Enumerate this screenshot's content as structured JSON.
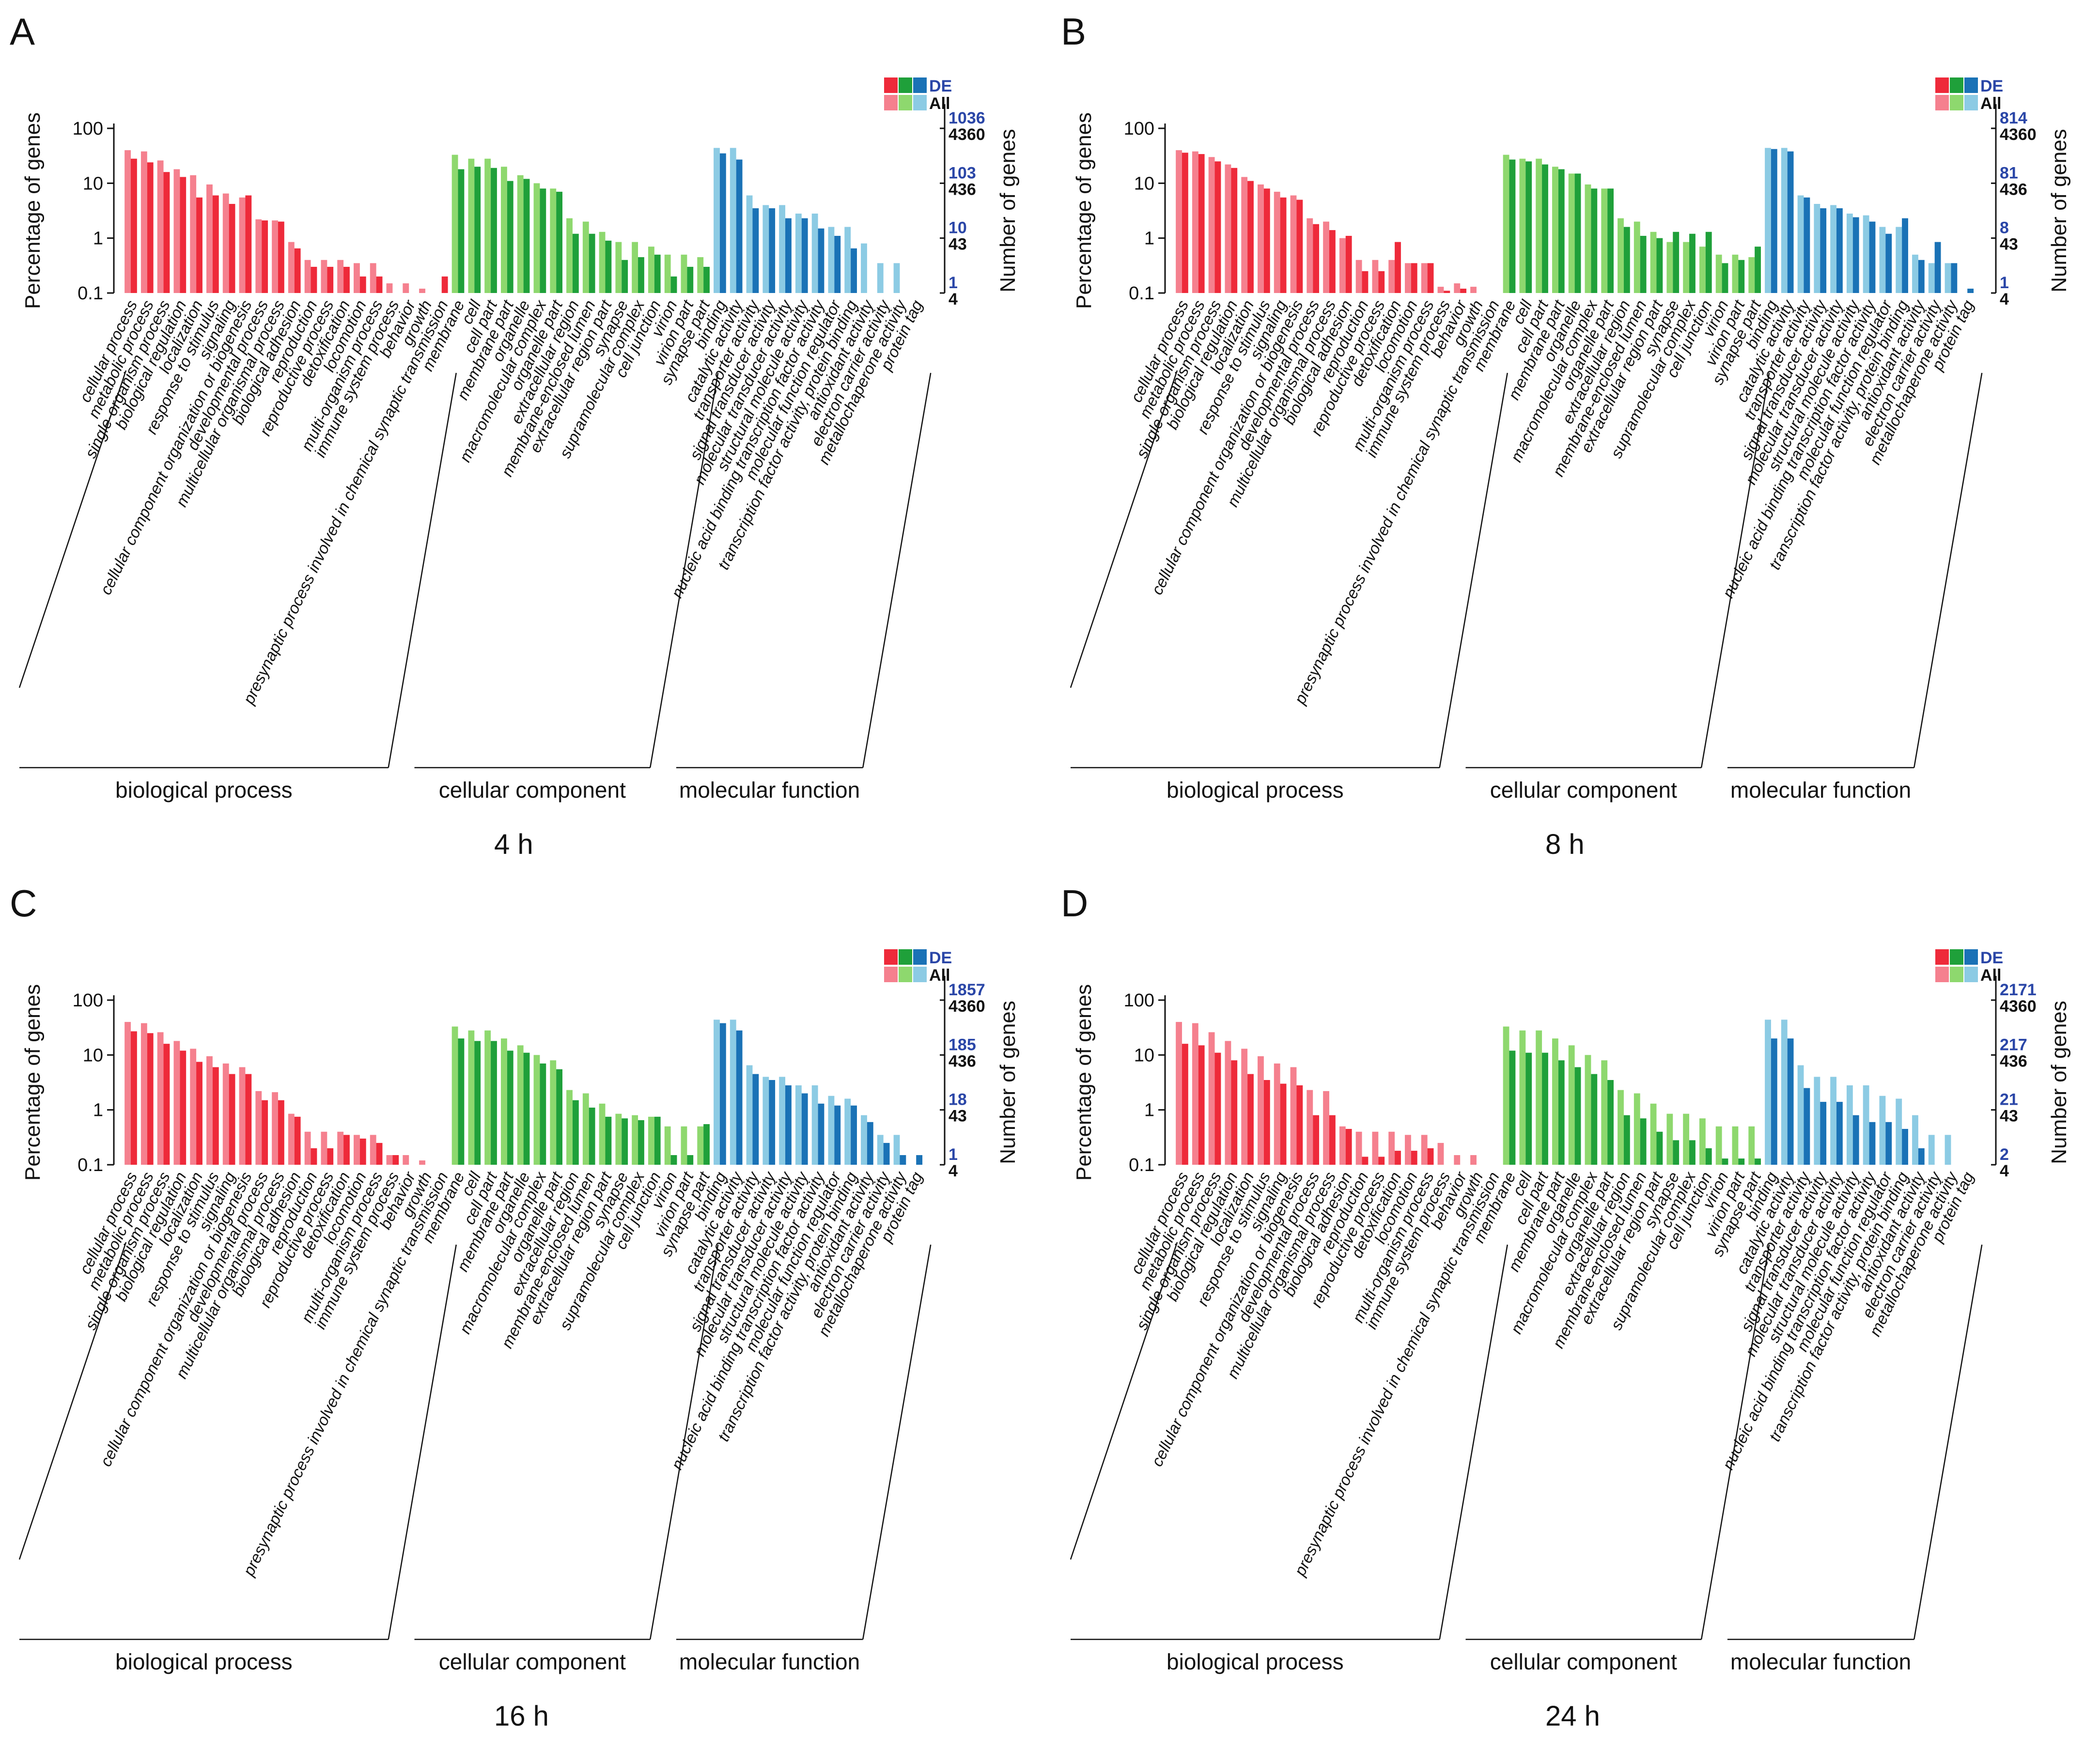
{
  "colors": {
    "bp_de": "#ee2a3a",
    "bp_all": "#f5808e",
    "cc_de": "#1fa03a",
    "cc_all": "#8ed86e",
    "mf_de": "#1a72b6",
    "mf_all": "#8ccbe4",
    "right_de_label": "#2a46a7"
  },
  "legend": {
    "de": "DE",
    "all": "All"
  },
  "axes": {
    "left_title": "Percentage of genes",
    "right_title": "Number of genes",
    "y_ticks": [
      "100",
      "10",
      "1",
      "0.1"
    ]
  },
  "groups": [
    "biological process",
    "cellular component",
    "molecular function"
  ],
  "chart_data": [
    {
      "panel": "A",
      "timepoint": "4 h",
      "type": "bar",
      "yscale": "log",
      "ylim": [
        0.1,
        100
      ],
      "right_axis": {
        "de": [
          "1036",
          "103",
          "10",
          "1"
        ],
        "all": [
          "4360",
          "436",
          "43",
          "4"
        ]
      },
      "categories": [
        "cellular process",
        "metabolic process",
        "single-organism process",
        "biological regulation",
        "localization",
        "response to stimulus",
        "signaling",
        "cellular component organization or biogenesis",
        "developmental process",
        "multicellular organismal process",
        "biological adhesion",
        "reproduction",
        "reproductive process",
        "detoxification",
        "locomotion",
        "multi-organism process",
        "immune system process",
        "behavior",
        "growth",
        "presynaptic process involved in chemical synaptic transmission",
        "membrane",
        "cell",
        "cell part",
        "membrane part",
        "organelle",
        "macromolecular complex",
        "organelle part",
        "extracellular region",
        "membrane-enclosed lumen",
        "extracellular region part",
        "synapse",
        "supramolecular complex",
        "cell junction",
        "virion",
        "virion part",
        "synapse part",
        "binding",
        "catalytic activity",
        "transporter activity",
        "signal transducer activity",
        "molecular transducer activity",
        "structural molecule activity",
        "nucleic acid binding transcription factor activity",
        "molecular function regulator",
        "transcription factor activity, protein binding",
        "antioxidant activity",
        "electron carrier activity",
        "metallochaperone activity",
        "protein tag"
      ],
      "groups": [
        "BP",
        "BP",
        "BP",
        "BP",
        "BP",
        "BP",
        "BP",
        "BP",
        "BP",
        "BP",
        "BP",
        "BP",
        "BP",
        "BP",
        "BP",
        "BP",
        "BP",
        "BP",
        "BP",
        "BP",
        "CC",
        "CC",
        "CC",
        "CC",
        "CC",
        "CC",
        "CC",
        "CC",
        "CC",
        "CC",
        "CC",
        "CC",
        "CC",
        "CC",
        "CC",
        "CC",
        "MF",
        "MF",
        "MF",
        "MF",
        "MF",
        "MF",
        "MF",
        "MF",
        "MF",
        "MF",
        "MF",
        "MF",
        "MF"
      ],
      "series": [
        {
          "name": "All",
          "values": [
            40,
            38,
            26,
            18,
            14,
            9.5,
            6.5,
            5.5,
            2.2,
            2.1,
            0.85,
            0.4,
            0.4,
            0.4,
            0.35,
            0.35,
            0.15,
            0.15,
            0.12,
            0.1,
            33,
            28,
            28,
            20,
            14,
            10,
            8,
            2.3,
            2,
            1.3,
            0.85,
            0.85,
            0.7,
            0.5,
            0.5,
            0.45,
            44,
            44,
            6,
            4,
            4,
            2.8,
            2.8,
            1.6,
            1.6,
            0.8,
            0.35,
            0.35,
            0.1
          ]
        },
        {
          "name": "DE",
          "values": [
            28,
            24,
            16,
            13,
            5.5,
            6,
            4.2,
            6,
            2.1,
            2,
            0.65,
            0.3,
            0.3,
            0.3,
            0.2,
            0.2,
            0.1,
            0.1,
            0.1,
            0.2,
            18,
            20,
            19,
            11,
            12,
            8,
            7,
            1.2,
            1.2,
            0.9,
            0.4,
            0.45,
            0.5,
            0.2,
            0.3,
            0.3,
            35,
            27,
            3.5,
            3.5,
            2.3,
            2.3,
            1.5,
            1.1,
            0.65,
            0.1,
            0.1,
            0.1,
            0.1
          ]
        }
      ]
    },
    {
      "panel": "B",
      "timepoint": "8 h",
      "type": "bar",
      "yscale": "log",
      "ylim": [
        0.1,
        100
      ],
      "right_axis": {
        "de": [
          "814",
          "81",
          "8",
          "1"
        ],
        "all": [
          "4360",
          "436",
          "43",
          "4"
        ]
      },
      "categories": [
        "cellular process",
        "metabolic process",
        "single-organism process",
        "biological regulation",
        "localization",
        "response to stimulus",
        "signaling",
        "cellular component organization or biogenesis",
        "developmental process",
        "multicellular organismal process",
        "biological adhesion",
        "reproduction",
        "reproductive process",
        "detoxification",
        "locomotion",
        "multi-organism process",
        "immune system process",
        "behavior",
        "growth",
        "presynaptic process involved in chemical synaptic transmission",
        "membrane",
        "cell",
        "cell part",
        "membrane part",
        "organelle",
        "macromolecular complex",
        "organelle part",
        "extracellular region",
        "membrane-enclosed lumen",
        "extracellular region part",
        "synapse",
        "supramolecular complex",
        "cell junction",
        "virion",
        "virion part",
        "synapse part",
        "binding",
        "catalytic activity",
        "transporter activity",
        "signal transducer activity",
        "molecular transducer activity",
        "structural molecule activity",
        "nucleic acid binding transcription factor activity",
        "molecular function regulator",
        "transcription factor activity, protein binding",
        "antioxidant activity",
        "electron carrier activity",
        "metallochaperone activity",
        "protein tag"
      ],
      "groups": [
        "BP",
        "BP",
        "BP",
        "BP",
        "BP",
        "BP",
        "BP",
        "BP",
        "BP",
        "BP",
        "BP",
        "BP",
        "BP",
        "BP",
        "BP",
        "BP",
        "BP",
        "BP",
        "BP",
        "BP",
        "CC",
        "CC",
        "CC",
        "CC",
        "CC",
        "CC",
        "CC",
        "CC",
        "CC",
        "CC",
        "CC",
        "CC",
        "CC",
        "CC",
        "CC",
        "CC",
        "MF",
        "MF",
        "MF",
        "MF",
        "MF",
        "MF",
        "MF",
        "MF",
        "MF",
        "MF",
        "MF",
        "MF",
        "MF"
      ],
      "series": [
        {
          "name": "All",
          "values": [
            40,
            38,
            30,
            22,
            13,
            9.5,
            7,
            6,
            2.3,
            2,
            1,
            0.4,
            0.4,
            0.4,
            0.35,
            0.35,
            0.13,
            0.15,
            0.13,
            0.1,
            33,
            28,
            28,
            20,
            15,
            9.5,
            8,
            2.3,
            2,
            1.3,
            0.85,
            0.85,
            0.7,
            0.5,
            0.5,
            0.45,
            44,
            44,
            6,
            4.2,
            4,
            2.8,
            2.6,
            1.6,
            1.6,
            0.5,
            0.35,
            0.35,
            0.1
          ]
        },
        {
          "name": "DE",
          "values": [
            36,
            34,
            25,
            19,
            11,
            8,
            5.5,
            5,
            1.8,
            1.4,
            1.1,
            0.25,
            0.25,
            0.85,
            0.35,
            0.35,
            0.11,
            0.12,
            0.1,
            0.1,
            27,
            25,
            22,
            18,
            15,
            8,
            8,
            1.6,
            1.1,
            1,
            1.3,
            1.2,
            1.3,
            0.35,
            0.4,
            0.7,
            42,
            38,
            5.5,
            3.5,
            3.5,
            2.4,
            2,
            1.2,
            2.3,
            0.4,
            0.85,
            0.35,
            0.12
          ]
        }
      ]
    },
    {
      "panel": "C",
      "timepoint": "16 h",
      "type": "bar",
      "yscale": "log",
      "ylim": [
        0.1,
        100
      ],
      "right_axis": {
        "de": [
          "1857",
          "185",
          "18",
          "1"
        ],
        "all": [
          "4360",
          "436",
          "43",
          "4"
        ]
      },
      "categories": [
        "cellular process",
        "metabolic process",
        "single-organism process",
        "biological regulation",
        "localization",
        "response to stimulus",
        "signaling",
        "cellular component organization or biogenesis",
        "developmental process",
        "multicellular organismal process",
        "biological adhesion",
        "reproduction",
        "reproductive process",
        "detoxification",
        "locomotion",
        "multi-organism process",
        "immune system process",
        "behavior",
        "growth",
        "presynaptic process involved in chemical synaptic transmission",
        "membrane",
        "cell",
        "cell part",
        "membrane part",
        "organelle",
        "macromolecular complex",
        "organelle part",
        "extracellular region",
        "membrane-enclosed lumen",
        "extracellular region part",
        "synapse",
        "supramolecular complex",
        "cell junction",
        "virion",
        "virion part",
        "synapse part",
        "binding",
        "catalytic activity",
        "transporter activity",
        "signal transducer activity",
        "molecular transducer activity",
        "structural molecule activity",
        "nucleic acid binding transcription factor activity",
        "molecular function regulator",
        "transcription factor activity, protein binding",
        "antioxidant activity",
        "electron carrier activity",
        "metallochaperone activity",
        "protein tag"
      ],
      "groups": [
        "BP",
        "BP",
        "BP",
        "BP",
        "BP",
        "BP",
        "BP",
        "BP",
        "BP",
        "BP",
        "BP",
        "BP",
        "BP",
        "BP",
        "BP",
        "BP",
        "BP",
        "BP",
        "BP",
        "BP",
        "CC",
        "CC",
        "CC",
        "CC",
        "CC",
        "CC",
        "CC",
        "CC",
        "CC",
        "CC",
        "CC",
        "CC",
        "CC",
        "CC",
        "CC",
        "CC",
        "MF",
        "MF",
        "MF",
        "MF",
        "MF",
        "MF",
        "MF",
        "MF",
        "MF",
        "MF",
        "MF",
        "MF",
        "MF"
      ],
      "series": [
        {
          "name": "All",
          "values": [
            40,
            38,
            26,
            18,
            13,
            9.5,
            7,
            6,
            2.2,
            2.1,
            0.85,
            0.4,
            0.4,
            0.4,
            0.35,
            0.35,
            0.15,
            0.15,
            0.12,
            0.1,
            33,
            28,
            28,
            20,
            15,
            10,
            8,
            2.3,
            2,
            1.3,
            0.85,
            0.8,
            0.75,
            0.5,
            0.5,
            0.5,
            44,
            44,
            6.5,
            4,
            4,
            2.8,
            2.8,
            1.8,
            1.6,
            0.8,
            0.35,
            0.35,
            0.1
          ]
        },
        {
          "name": "DE",
          "values": [
            27,
            25,
            16,
            12,
            7.5,
            6,
            4.5,
            4.5,
            1.5,
            1.5,
            0.75,
            0.2,
            0.2,
            0.35,
            0.3,
            0.25,
            0.15,
            0.1,
            0.1,
            0.1,
            20,
            18,
            18,
            12,
            11,
            7,
            5.5,
            1.5,
            1.1,
            0.75,
            0.7,
            0.65,
            0.75,
            0.15,
            0.15,
            0.55,
            38,
            28,
            4.5,
            3.5,
            2.8,
            2,
            1.3,
            1.2,
            1.2,
            0.6,
            0.25,
            0.15,
            0.15
          ]
        }
      ]
    },
    {
      "panel": "D",
      "timepoint": "24 h",
      "type": "bar",
      "yscale": "log",
      "ylim": [
        0.1,
        100
      ],
      "right_axis": {
        "de": [
          "2171",
          "217",
          "21",
          "2"
        ],
        "all": [
          "4360",
          "436",
          "43",
          "4"
        ]
      },
      "categories": [
        "cellular process",
        "metabolic process",
        "single-organism process",
        "biological regulation",
        "localization",
        "response to stimulus",
        "signaling",
        "cellular component organization or biogenesis",
        "developmental process",
        "multicellular organismal process",
        "biological adhesion",
        "reproduction",
        "reproductive process",
        "detoxification",
        "locomotion",
        "multi-organism process",
        "immune system process",
        "behavior",
        "growth",
        "presynaptic process involved in chemical synaptic transmission",
        "membrane",
        "cell",
        "cell part",
        "membrane part",
        "organelle",
        "macromolecular complex",
        "organelle part",
        "extracellular region",
        "membrane-enclosed lumen",
        "extracellular region part",
        "synapse",
        "supramolecular complex",
        "cell junction",
        "virion",
        "virion part",
        "synapse part",
        "binding",
        "catalytic activity",
        "transporter activity",
        "signal transducer activity",
        "molecular transducer activity",
        "structural molecule activity",
        "nucleic acid binding transcription factor activity",
        "molecular function regulator",
        "transcription factor activity, protein binding",
        "antioxidant activity",
        "electron carrier activity",
        "metallochaperone activity",
        "protein tag"
      ],
      "groups": [
        "BP",
        "BP",
        "BP",
        "BP",
        "BP",
        "BP",
        "BP",
        "BP",
        "BP",
        "BP",
        "BP",
        "BP",
        "BP",
        "BP",
        "BP",
        "BP",
        "BP",
        "BP",
        "BP",
        "BP",
        "CC",
        "CC",
        "CC",
        "CC",
        "CC",
        "CC",
        "CC",
        "CC",
        "CC",
        "CC",
        "CC",
        "CC",
        "CC",
        "CC",
        "CC",
        "CC",
        "MF",
        "MF",
        "MF",
        "MF",
        "MF",
        "MF",
        "MF",
        "MF",
        "MF",
        "MF",
        "MF",
        "MF",
        "MF"
      ],
      "series": [
        {
          "name": "All",
          "values": [
            40,
            38,
            26,
            18,
            13,
            9.5,
            7,
            6,
            2.3,
            2.2,
            0.5,
            0.4,
            0.4,
            0.4,
            0.35,
            0.35,
            0.25,
            0.15,
            0.15,
            0.1,
            33,
            28,
            28,
            20,
            15,
            10,
            8,
            2.3,
            2,
            1.3,
            0.85,
            0.85,
            0.7,
            0.5,
            0.5,
            0.5,
            44,
            44,
            6.5,
            4,
            4,
            2.8,
            2.8,
            1.8,
            1.6,
            0.8,
            0.35,
            0.35,
            0.1
          ]
        },
        {
          "name": "DE",
          "values": [
            16,
            15,
            11,
            8,
            4.5,
            3.5,
            3,
            2.8,
            0.8,
            0.8,
            0.45,
            0.14,
            0.14,
            0.18,
            0.18,
            0.2,
            0.1,
            0.1,
            0.1,
            0.1,
            12,
            11,
            11,
            8,
            6,
            4.5,
            3.5,
            0.8,
            0.7,
            0.4,
            0.28,
            0.28,
            0.2,
            0.13,
            0.13,
            0.13,
            20,
            20,
            2.5,
            1.4,
            1.4,
            0.8,
            0.6,
            0.6,
            0.45,
            0.2,
            0.1,
            0.1,
            0.1
          ]
        }
      ]
    }
  ]
}
